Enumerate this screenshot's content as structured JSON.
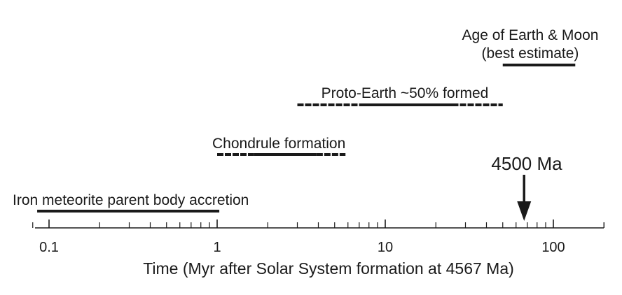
{
  "axis": {
    "title": "Time (Myr after Solar System formation at 4567 Ma)",
    "scale": "log",
    "range": [
      0.08,
      200
    ],
    "tick_labels": [
      {
        "value": 0.1,
        "text": "0.1"
      },
      {
        "value": 1,
        "text": "1"
      },
      {
        "value": 10,
        "text": "10"
      },
      {
        "value": 100,
        "text": "100"
      }
    ]
  },
  "events": [
    {
      "label": "Iron meteorite parent body accretion",
      "solid": [
        0.085,
        1.03
      ],
      "dashed": []
    },
    {
      "label": "Chondrule formation",
      "solid": [
        1.65,
        3.9
      ],
      "dashed": [
        [
          1.0,
          1.65
        ],
        [
          3.9,
          5.8
        ]
      ]
    },
    {
      "label": "Proto-Earth ~50% formed",
      "solid": [
        7.0,
        25.0
      ],
      "dashed": [
        [
          3.0,
          7.0
        ],
        [
          25.0,
          50.0
        ]
      ]
    },
    {
      "label_lines": [
        "Age of Earth & Moon",
        "(best estimate)"
      ],
      "solid": [
        50.0,
        135.0
      ],
      "dashed": []
    }
  ],
  "marker": {
    "label": "4500 Ma",
    "value": 67
  }
}
